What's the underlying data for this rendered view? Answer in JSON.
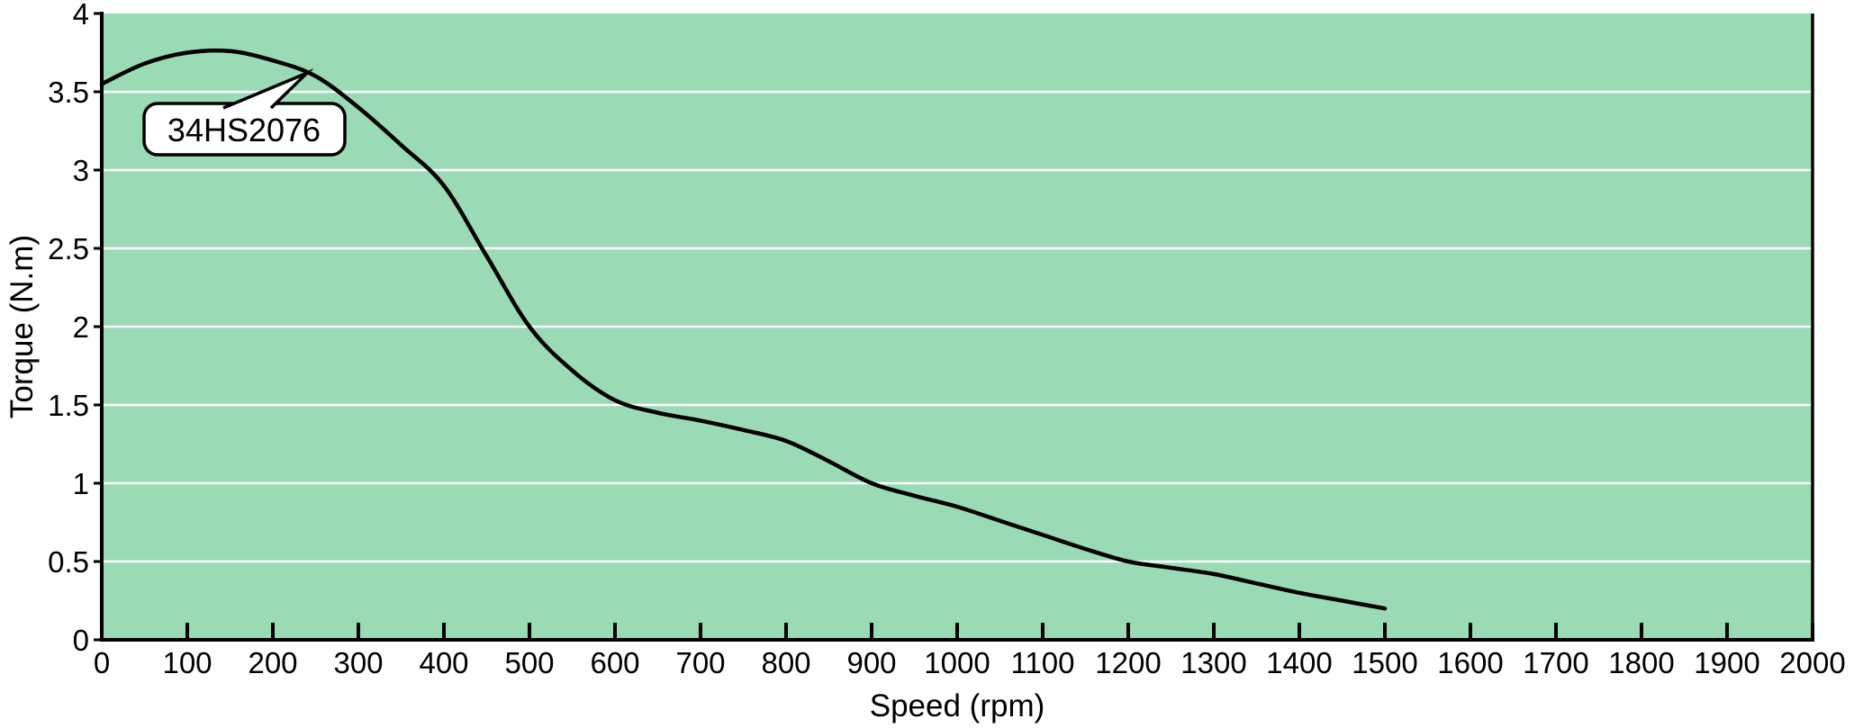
{
  "chart_data": {
    "type": "line",
    "title": "",
    "xlabel": "Speed (rpm)",
    "ylabel": "Torque (N.m)",
    "xlim": [
      0,
      2000
    ],
    "ylim": [
      0,
      4
    ],
    "x_ticks": [
      0,
      100,
      200,
      300,
      400,
      500,
      600,
      700,
      800,
      900,
      1000,
      1100,
      1200,
      1300,
      1400,
      1500,
      1600,
      1700,
      1800,
      1900,
      2000
    ],
    "y_ticks": [
      0,
      0.5,
      1,
      1.5,
      2,
      2.5,
      3,
      3.5,
      4
    ],
    "grid": "horizontal-only",
    "legend": "none",
    "series": [
      {
        "name": "34HS2076",
        "x": [
          0,
          50,
          100,
          150,
          200,
          250,
          300,
          350,
          400,
          450,
          500,
          550,
          600,
          650,
          700,
          750,
          800,
          850,
          900,
          950,
          1000,
          1050,
          1100,
          1150,
          1200,
          1250,
          1300,
          1350,
          1400,
          1450,
          1500
        ],
        "y": [
          3.55,
          3.68,
          3.75,
          3.76,
          3.7,
          3.6,
          3.4,
          3.16,
          2.9,
          2.45,
          2.0,
          1.72,
          1.53,
          1.45,
          1.4,
          1.34,
          1.27,
          1.14,
          1.0,
          0.92,
          0.85,
          0.76,
          0.67,
          0.58,
          0.5,
          0.46,
          0.42,
          0.36,
          0.3,
          0.25,
          0.2
        ]
      }
    ],
    "annotations": [
      {
        "text": "34HS2076",
        "points_to": {
          "x": 240,
          "y": 3.62
        }
      }
    ],
    "colors": {
      "plot_background": "#9ADAB4",
      "gridline": "#FFFFFF",
      "axis": "#000000",
      "curve": "#000000",
      "callout_fill": "#FFFFFF",
      "callout_border": "#000000",
      "page_background": "#FFFFFF",
      "text": "#000000"
    }
  }
}
